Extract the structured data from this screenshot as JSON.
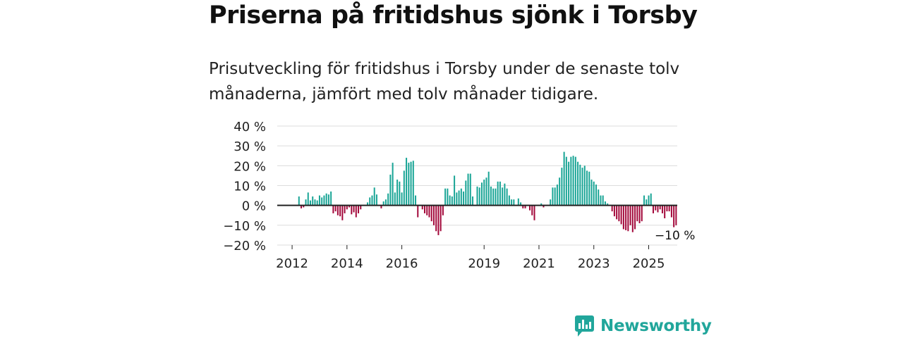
{
  "header": {
    "title": "Priserna på fritidshus sjönk i Torsby",
    "subtitle": "Prisutveckling för fritidshus i Torsby under de senaste tolv månaderna, jämfört med tolv månader tidigare."
  },
  "chart_data": {
    "type": "bar",
    "title": "Priserna på fritidshus sjönk i Torsby",
    "xlabel": "",
    "ylabel": "",
    "unit": "%",
    "ylim": [
      -20,
      40
    ],
    "y_ticks": [
      40,
      30,
      20,
      10,
      0,
      -10,
      -20
    ],
    "y_tick_labels": [
      "40 %",
      "30 %",
      "20 %",
      "10 %",
      "0 %",
      "−10 %",
      "−20 %"
    ],
    "x_ticks": [
      {
        "label": "2012",
        "index": 6
      },
      {
        "label": "2014",
        "index": 30
      },
      {
        "label": "2016",
        "index": 54
      },
      {
        "label": "2019",
        "index": 90
      },
      {
        "label": "2021",
        "index": 114
      },
      {
        "label": "2023",
        "index": 138
      },
      {
        "label": "2025",
        "index": 162
      }
    ],
    "positive_color": "#1aa596",
    "negative_color": "#a3093b",
    "end_label": "−10 %",
    "values": [
      0,
      0,
      0,
      0,
      0,
      0,
      0,
      0,
      0,
      4.5,
      -1.5,
      -1,
      3,
      6.5,
      2.5,
      4.5,
      3,
      2.5,
      5,
      4,
      5,
      6,
      5.5,
      7,
      -4,
      -3,
      -5,
      -5.5,
      -7.5,
      -4,
      -2,
      -1,
      -4.5,
      -3.5,
      -6,
      -4,
      -2,
      0,
      0,
      1.5,
      4,
      5,
      9,
      5.5,
      0,
      -1.5,
      2,
      3,
      6,
      15.5,
      21.5,
      6.5,
      13,
      12,
      6.5,
      17.5,
      24,
      21.5,
      22,
      22.5,
      5,
      -6,
      0,
      -2,
      -4,
      -5,
      -6,
      -8,
      -10,
      -13,
      -15,
      -13,
      -5,
      8.5,
      8.5,
      5,
      4.5,
      15,
      6.5,
      7.5,
      8.5,
      7,
      12.5,
      16,
      16,
      4.5,
      0,
      9.5,
      9,
      11.5,
      13,
      14,
      17,
      9.5,
      8.5,
      8.5,
      12,
      12,
      9,
      11,
      8.5,
      5,
      3,
      3,
      0,
      3.5,
      1.5,
      -1.5,
      -1.5,
      0,
      -2.5,
      -5,
      -7.5,
      0,
      0,
      1,
      -1,
      0,
      0,
      3,
      9,
      9,
      10.5,
      14,
      19,
      27,
      24.5,
      22,
      24.5,
      25,
      24.5,
      22,
      20.5,
      19,
      20,
      17.5,
      17,
      13,
      12,
      10.5,
      8,
      5,
      5,
      2,
      1,
      0,
      -3,
      -5.5,
      -7,
      -8,
      -9.5,
      -12,
      -12.5,
      -13,
      -10,
      -13.5,
      -12,
      -8,
      -9,
      -8,
      5,
      3,
      5,
      6,
      -4,
      -2.5,
      -3.5,
      -2,
      -4,
      -6.5,
      -3,
      -3,
      -6,
      -11,
      -10
    ]
  },
  "logo": {
    "text": "Newsworthy"
  }
}
